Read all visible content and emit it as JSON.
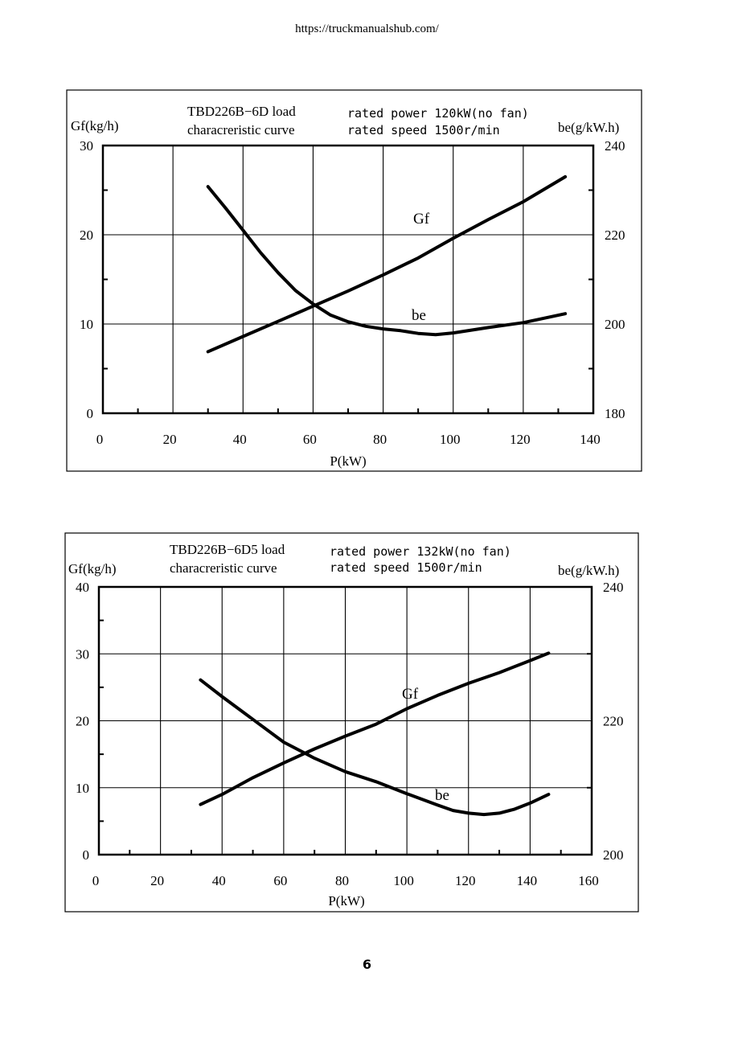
{
  "page": {
    "url_text": "https://truckmanualshub.com/",
    "page_number": "6"
  },
  "chart_data": [
    {
      "type": "line",
      "title_line1": "TBD226B−6D load",
      "title_line2": "characreristic curve",
      "spec_line1": "rated power 120kW(no fan)",
      "spec_line2": "rated speed 1500r/min",
      "xlabel": "P(kW)",
      "ylabel_left": "Gf(kg/h)",
      "ylabel_right": "be(g/kW.h)",
      "xlim": [
        0,
        140
      ],
      "ylim_left": [
        0,
        30
      ],
      "ylim_right": [
        180,
        240
      ],
      "x_ticks": [
        "0",
        "20",
        "40",
        "60",
        "80",
        "100",
        "120",
        "140"
      ],
      "y_left_ticks": [
        "0",
        "10",
        "20",
        "30"
      ],
      "y_right_ticks": [
        "180",
        "200",
        "220",
        "240"
      ],
      "grid": true,
      "series": [
        {
          "name": "Gf",
          "axis": "left",
          "x": [
            30,
            40,
            50,
            60,
            70,
            80,
            90,
            100,
            110,
            120,
            132
          ],
          "y": [
            6.9,
            8.6,
            10.3,
            12.0,
            13.7,
            15.5,
            17.4,
            19.6,
            21.7,
            23.7,
            26.5
          ]
        },
        {
          "name": "be",
          "axis": "right",
          "x": [
            30,
            35,
            40,
            45,
            50,
            55,
            60,
            65,
            70,
            75,
            80,
            85,
            90,
            95,
            100,
            110,
            120,
            132
          ],
          "y": [
            230.8,
            226.0,
            221.0,
            216.0,
            211.5,
            207.5,
            204.5,
            202.0,
            200.5,
            199.5,
            198.9,
            198.5,
            197.9,
            197.6,
            198.0,
            199.2,
            200.3,
            202.3
          ]
        }
      ]
    },
    {
      "type": "line",
      "title_line1": "TBD226B−6D5 load",
      "title_line2": "characreristic curve",
      "spec_line1": "rated power 132kW(no fan)",
      "spec_line2": "rated speed 1500r/min",
      "xlabel": "P(kW)",
      "ylabel_left": "Gf(kg/h)",
      "ylabel_right": "be(g/kW.h)",
      "xlim": [
        0,
        160
      ],
      "ylim_left": [
        0,
        40
      ],
      "ylim_right": [
        200,
        240
      ],
      "x_ticks": [
        "0",
        "20",
        "40",
        "60",
        "80",
        "100",
        "120",
        "140",
        "160"
      ],
      "y_left_ticks": [
        "0",
        "10",
        "20",
        "30",
        "40"
      ],
      "y_right_ticks": [
        "200",
        "220",
        "240"
      ],
      "grid": true,
      "series": [
        {
          "name": "Gf",
          "axis": "left",
          "x": [
            33,
            40,
            50,
            60,
            70,
            80,
            90,
            100,
            110,
            120,
            130,
            140,
            146
          ],
          "y": [
            7.5,
            9.0,
            11.5,
            13.7,
            15.8,
            17.7,
            19.5,
            21.8,
            23.8,
            25.6,
            27.2,
            29.0,
            30.1
          ]
        },
        {
          "name": "be",
          "axis": "right",
          "x": [
            33,
            40,
            50,
            60,
            70,
            80,
            90,
            100,
            110,
            115,
            120,
            125,
            130,
            135,
            140,
            146
          ],
          "y": [
            226.1,
            223.6,
            220.2,
            216.8,
            214.4,
            212.4,
            210.9,
            209.1,
            207.4,
            206.6,
            206.2,
            206.0,
            206.2,
            206.8,
            207.7,
            209.0
          ]
        }
      ]
    }
  ]
}
